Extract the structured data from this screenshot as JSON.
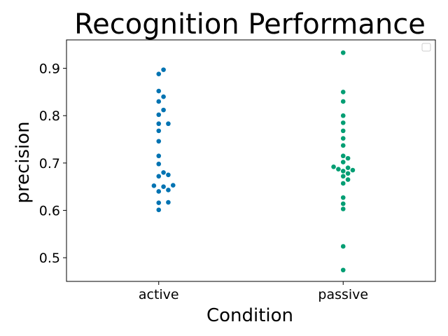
{
  "chart_data": {
    "type": "scatter",
    "title": "Recognition Performance",
    "xlabel": "Condition",
    "ylabel": "precision",
    "categories": [
      "active",
      "passive"
    ],
    "ylim": [
      0.45,
      0.96
    ],
    "yticks": [
      0.5,
      0.6,
      0.7,
      0.8,
      0.9
    ],
    "ytick_labels": [
      "0.5",
      "0.6",
      "0.7",
      "0.8",
      "0.9"
    ],
    "grid": false,
    "legend": "top-right (empty)",
    "series": [
      {
        "category": "active",
        "color": "#0173b2",
        "values": [
          0.897,
          0.888,
          0.852,
          0.84,
          0.83,
          0.812,
          0.802,
          0.783,
          0.783,
          0.768,
          0.746,
          0.715,
          0.698,
          0.68,
          0.675,
          0.672,
          0.653,
          0.652,
          0.65,
          0.643,
          0.64,
          0.617,
          0.616,
          0.601
        ]
      },
      {
        "category": "passive",
        "color": "#029e73",
        "values": [
          0.933,
          0.85,
          0.83,
          0.8,
          0.785,
          0.768,
          0.752,
          0.737,
          0.715,
          0.71,
          0.702,
          0.692,
          0.69,
          0.687,
          0.685,
          0.683,
          0.678,
          0.672,
          0.665,
          0.657,
          0.627,
          0.614,
          0.603,
          0.524,
          0.474
        ]
      }
    ]
  }
}
